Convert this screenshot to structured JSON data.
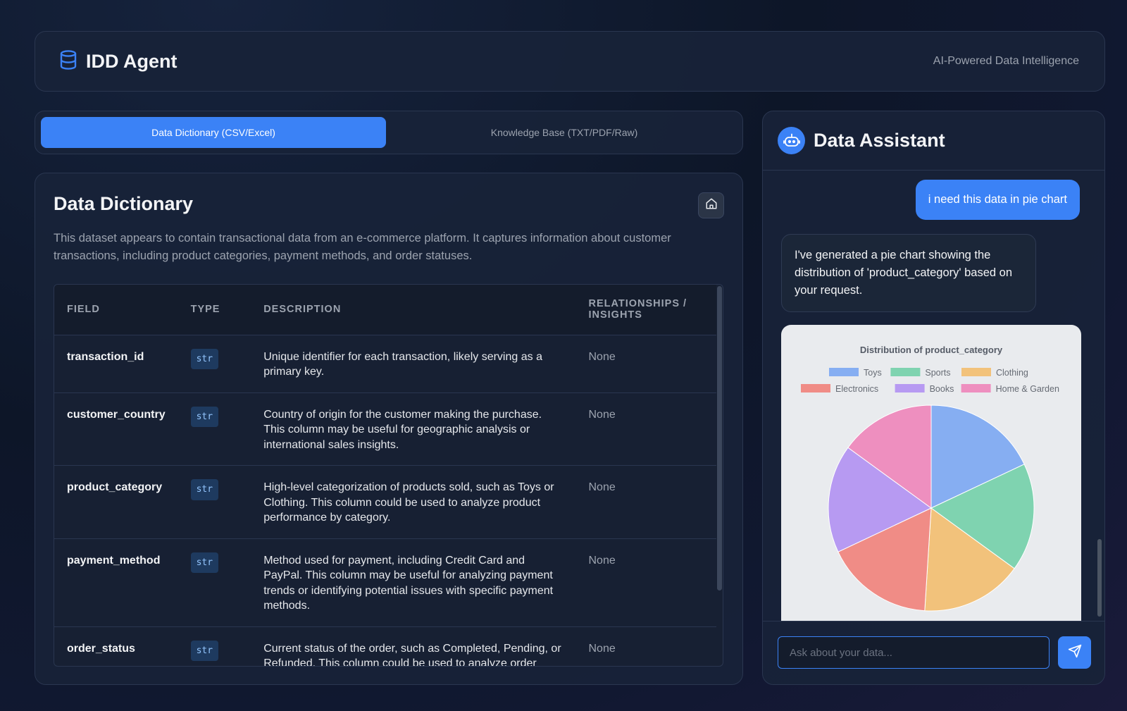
{
  "header": {
    "title": "IDD Agent",
    "tagline": "AI-Powered Data Intelligence",
    "logo_icon": "database-icon"
  },
  "tabs": [
    {
      "label": "Data Dictionary (CSV/Excel)",
      "active": true
    },
    {
      "label": "Knowledge Base (TXT/PDF/Raw)",
      "active": false
    }
  ],
  "dictionary": {
    "title": "Data Dictionary",
    "description": "This dataset appears to contain transactional data from an e-commerce platform. It captures information about customer transactions, including product categories, payment methods, and order statuses.",
    "columns": [
      "FIELD",
      "TYPE",
      "DESCRIPTION",
      "RELATIONSHIPS / INSIGHTS"
    ],
    "rows": [
      {
        "field": "transaction_id",
        "type": "str",
        "description": "Unique identifier for each transaction, likely serving as a primary key.",
        "relationships": "None"
      },
      {
        "field": "customer_country",
        "type": "str",
        "description": "Country of origin for the customer making the purchase. This column may be useful for geographic analysis or international sales insights.",
        "relationships": "None"
      },
      {
        "field": "product_category",
        "type": "str",
        "description": "High-level categorization of products sold, such as Toys or Clothing. This column could be used to analyze product performance by category.",
        "relationships": "None"
      },
      {
        "field": "payment_method",
        "type": "str",
        "description": "Method used for payment, including Credit Card and PayPal. This column may be useful for analyzing payment trends or identifying potential issues with specific payment methods.",
        "relationships": "None"
      },
      {
        "field": "order_status",
        "type": "str",
        "description": "Current status of the order, such as Completed, Pending, or Refunded. This column could be used to analyze order",
        "relationships": "None"
      }
    ]
  },
  "chat": {
    "title": "Data Assistant",
    "user_message": "i need this data in pie chart",
    "bot_message": "I've generated a pie chart showing the distribution of 'product_category' based on your request.",
    "input_placeholder": "Ask about your data...",
    "input_value": ""
  },
  "chart_data": {
    "type": "pie",
    "title": "Distribution of product_category",
    "legend_position": "top",
    "categories": [
      "Toys",
      "Sports",
      "Clothing",
      "Electronics",
      "Books",
      "Home & Garden"
    ],
    "values": [
      18,
      17,
      16,
      17,
      17,
      15
    ],
    "colors": [
      "#86aef2",
      "#7fd3b0",
      "#f2c27b",
      "#f08c86",
      "#b79af2",
      "#ee8fbf"
    ]
  }
}
